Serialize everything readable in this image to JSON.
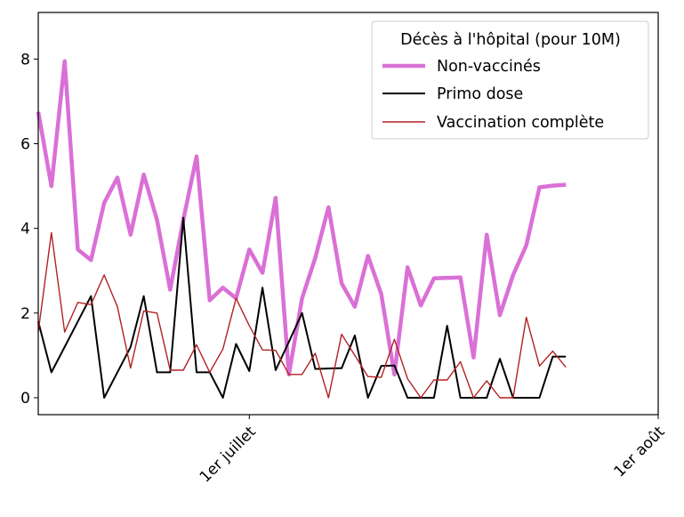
{
  "chart_data": {
    "type": "line",
    "title": "",
    "xlabel": "",
    "ylabel": "",
    "legend": {
      "title": "Décès à l'hôpital (pour 10M)",
      "placement": "top-right"
    },
    "x_start": "2021-06-15",
    "xlim": [
      "2021-06-15",
      "2021-08-01"
    ],
    "ylim": [
      -0.4,
      9.1
    ],
    "y_ticks": [
      0,
      2,
      4,
      6,
      8
    ],
    "x_ticks": [
      {
        "date": "2021-07-01",
        "label": "1er juillet"
      },
      {
        "date": "2021-08-01",
        "label": "1er août"
      }
    ],
    "grid": false,
    "series": [
      {
        "name": "Non-vaccinés",
        "color": "#da70d6",
        "values": [
          6.75,
          5.0,
          7.95,
          3.5,
          3.25,
          4.6,
          5.2,
          3.85,
          5.27,
          4.2,
          2.55,
          4.2,
          5.7,
          2.3,
          2.6,
          2.35,
          3.5,
          2.95,
          4.72,
          0.55,
          2.35,
          3.3,
          4.5,
          2.7,
          2.15,
          3.35,
          2.45,
          0.55,
          3.08,
          2.18,
          2.82,
          2.83,
          2.84,
          0.95,
          3.85,
          1.95,
          2.9,
          3.6,
          4.97,
          5.01,
          5.03
        ]
      },
      {
        "name": "Primo dose",
        "color": "#000000",
        "values": [
          1.8,
          0.6,
          1.2,
          1.8,
          2.4,
          0.0,
          0.6,
          1.2,
          2.4,
          0.6,
          0.6,
          4.25,
          0.6,
          0.6,
          0.0,
          1.27,
          0.63,
          2.6,
          0.65,
          1.32,
          2.0,
          0.68,
          0.69,
          0.7,
          1.47,
          0.0,
          0.75,
          0.76,
          0.0,
          0.0,
          0.0,
          1.7,
          0.0,
          0.0,
          0.0,
          0.92,
          0.0,
          0.0,
          0.0,
          0.97,
          0.97
        ]
      },
      {
        "name": "Vaccination complète",
        "color": "#b22222",
        "values": [
          1.55,
          3.9,
          1.55,
          2.25,
          2.2,
          2.9,
          2.15,
          0.7,
          2.05,
          2.0,
          0.65,
          0.65,
          1.25,
          0.6,
          1.15,
          2.35,
          1.7,
          1.13,
          1.12,
          0.55,
          0.55,
          1.05,
          0.0,
          1.5,
          1.0,
          0.5,
          0.48,
          1.38,
          0.45,
          0.0,
          0.42,
          0.42,
          0.85,
          0.0,
          0.4,
          0.0,
          0.0,
          1.9,
          0.75,
          1.1,
          0.72
        ]
      }
    ]
  }
}
